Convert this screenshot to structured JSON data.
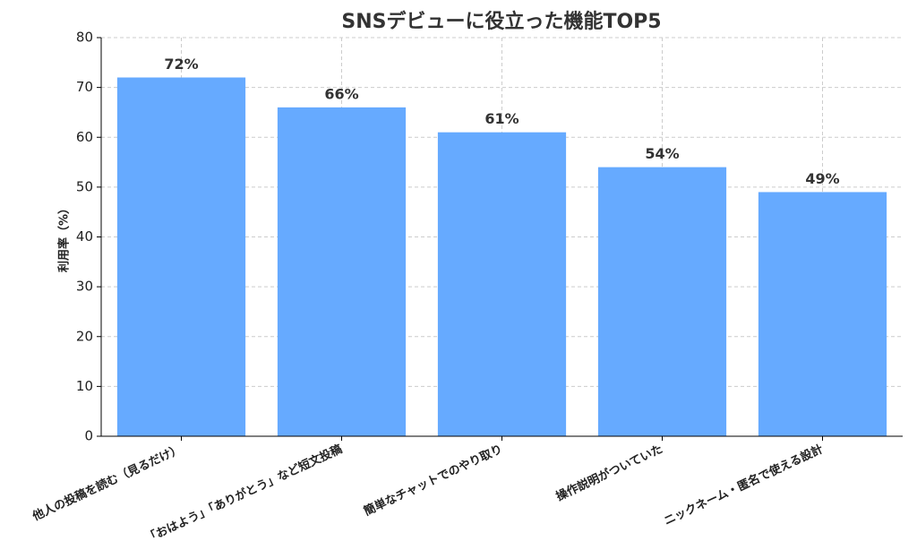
{
  "chart_data": {
    "type": "bar",
    "title": "SNSデビューに役立った機能TOP5",
    "categories": [
      "他人の投稿を読む（見るだけ）",
      "「おはよう」「ありがとう」など短文投稿",
      "簡単なチャットでのやり取り",
      "操作説明がついていた",
      "ニックネーム・匿名で使える設計"
    ],
    "values": [
      72,
      66,
      61,
      54,
      49
    ],
    "value_labels": [
      "72%",
      "66%",
      "61%",
      "54%",
      "49%"
    ],
    "color": "#66aaff",
    "y_label": "利用率（%）",
    "ylim": [
      0,
      80
    ],
    "yticks": [
      0,
      10,
      20,
      30,
      40,
      50,
      60,
      70,
      80
    ],
    "grid": true
  }
}
